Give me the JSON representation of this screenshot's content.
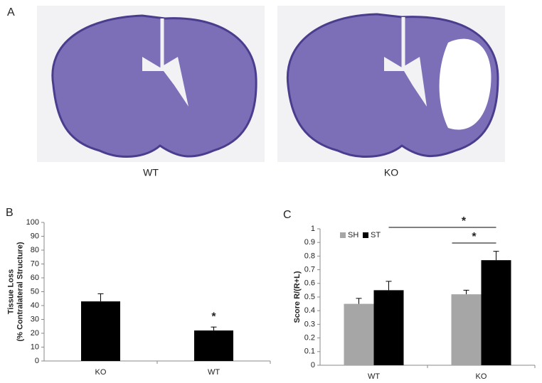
{
  "panels": {
    "a": {
      "label": "A",
      "captions": [
        "WT",
        "KO"
      ]
    }
  },
  "chart_data": [
    {
      "type": "bar",
      "panel_label": "B",
      "y_label": [
        "Tissue Loss",
        "(% Contralateral Structure)"
      ],
      "categories": [
        "KO",
        "WT"
      ],
      "values": [
        43,
        22
      ],
      "errors": [
        5.5,
        2.5
      ],
      "color": "#000000",
      "ylim": [
        0,
        100
      ],
      "yticks": [
        0,
        10,
        20,
        30,
        40,
        50,
        60,
        70,
        80,
        90,
        100
      ],
      "annotations": [
        "*"
      ]
    },
    {
      "type": "bar",
      "panel_label": "C",
      "y_label": [
        "Score R/(R+L)"
      ],
      "categories": [
        "WT",
        "KO"
      ],
      "series": [
        {
          "name": "SH",
          "color": "#a6a6a6",
          "values": [
            0.45,
            0.52
          ],
          "errors": [
            0.04,
            0.03
          ]
        },
        {
          "name": "ST",
          "color": "#000000",
          "values": [
            0.55,
            0.77
          ],
          "errors": [
            0.065,
            0.065
          ]
        }
      ],
      "ylim": [
        0,
        1
      ],
      "yticks": [
        0,
        0.1,
        0.2,
        0.3,
        0.4,
        0.5,
        0.6,
        0.7,
        0.8,
        0.9,
        1
      ],
      "legend": "top-left",
      "annotations": [
        "*",
        "*"
      ]
    }
  ]
}
